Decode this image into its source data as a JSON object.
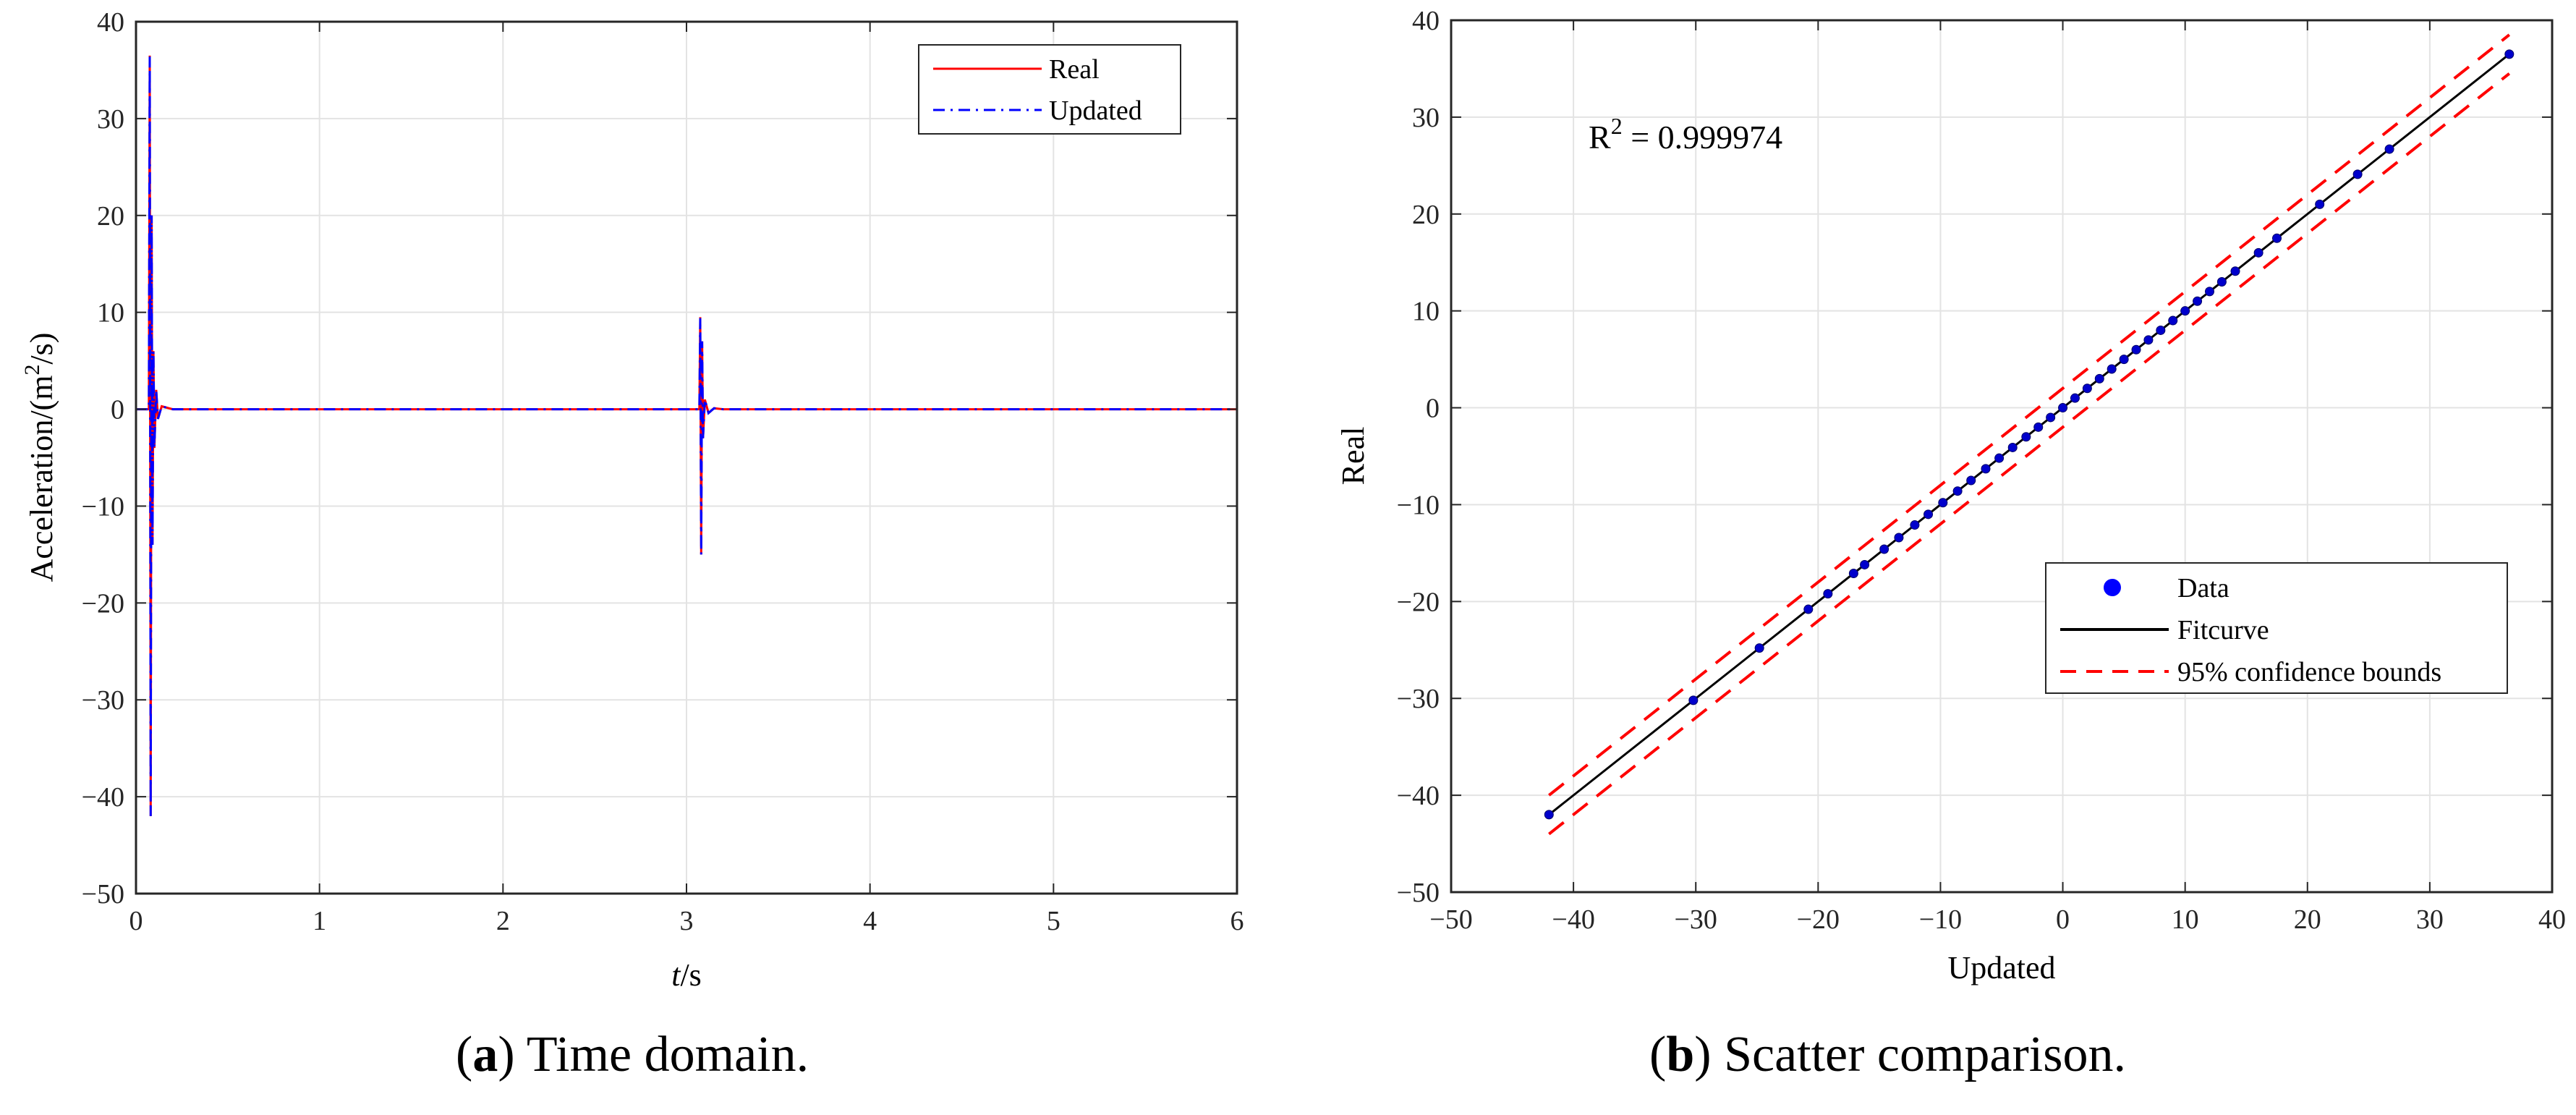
{
  "chart_data": [
    {
      "type": "line",
      "caption_letter": "a",
      "caption_text": "Time domain.",
      "title": "",
      "xlabel_italic": "t",
      "xlabel_rest": "/s",
      "ylabel_main": "Acceleration/(m",
      "ylabel_sup": "2",
      "ylabel_end": "/s)",
      "xlim": [
        0,
        6
      ],
      "ylim": [
        -50,
        40
      ],
      "xticks": [
        "0",
        "1",
        "2",
        "3",
        "4",
        "5",
        "6"
      ],
      "yticks": [
        "40",
        "30",
        "20",
        "10",
        "0",
        "−10",
        "−20",
        "−30",
        "−40",
        "−50"
      ],
      "grid": true,
      "legend_position": "top-right",
      "series": [
        {
          "name": "Real",
          "color": "#ff0000",
          "style": "solid",
          "x": [
            0,
            0.07,
            0.075,
            0.08,
            0.085,
            0.09,
            0.095,
            0.1,
            0.11,
            0.12,
            0.14,
            0.2,
            3.0,
            3.07,
            3.075,
            3.08,
            3.085,
            3.09,
            3.1,
            3.12,
            3.15,
            3.2,
            6.0
          ],
          "y": [
            0,
            0,
            36.5,
            -42,
            20,
            -14,
            6,
            -4,
            2,
            -1,
            0.3,
            0,
            0,
            0,
            9.5,
            -15,
            7,
            -3,
            1,
            -0.4,
            0.1,
            0,
            0
          ]
        },
        {
          "name": "Updated",
          "color": "#0000ff",
          "style": "dashdot",
          "x": [
            0,
            0.07,
            0.075,
            0.08,
            0.085,
            0.09,
            0.095,
            0.1,
            0.11,
            0.12,
            0.14,
            0.2,
            3.0,
            3.07,
            3.075,
            3.08,
            3.085,
            3.09,
            3.1,
            3.12,
            3.15,
            3.2,
            6.0
          ],
          "y": [
            0,
            0,
            36.4,
            -42,
            20,
            -14,
            6,
            -4,
            2,
            -1,
            0.3,
            0,
            0,
            0,
            9.4,
            -15,
            7,
            -3,
            1,
            -0.4,
            0.1,
            0,
            0
          ]
        }
      ]
    },
    {
      "type": "scatter",
      "caption_letter": "b",
      "caption_text": "Scatter comparison.",
      "title": "",
      "xlabel": "Updated",
      "ylabel": "Real",
      "xlim": [
        -50,
        40
      ],
      "ylim": [
        -50,
        40
      ],
      "xticks": [
        "−50",
        "−40",
        "−30",
        "−20",
        "−10",
        "0",
        "10",
        "20",
        "30",
        "40"
      ],
      "yticks": [
        "40",
        "30",
        "20",
        "10",
        "0",
        "−10",
        "−20",
        "−30",
        "−40",
        "−50"
      ],
      "grid": true,
      "legend_position": "bottom-right",
      "annotation_main": "R",
      "annotation_sup": "2",
      "annotation_value": " = 0.999974",
      "data": {
        "name": "Data",
        "color": "#0000ff",
        "x": [
          -42,
          -30.2,
          -24.8,
          -20.8,
          -19.2,
          -17.1,
          -16.2,
          -14.6,
          -13.4,
          -12.1,
          -11.0,
          -9.8,
          -8.6,
          -7.5,
          -6.3,
          -5.2,
          -4.1,
          -3.0,
          -2.0,
          -1.0,
          0.0,
          1.0,
          2.0,
          3.0,
          4.0,
          5.0,
          6.0,
          7.0,
          8.0,
          9.0,
          10.0,
          11.0,
          12.0,
          13.0,
          14.1,
          16.0,
          17.5,
          21.0,
          24.1,
          26.7,
          36.5
        ],
        "y": [
          -42,
          -30.2,
          -24.8,
          -20.8,
          -19.2,
          -17.1,
          -16.2,
          -14.6,
          -13.4,
          -12.1,
          -11.0,
          -9.8,
          -8.6,
          -7.5,
          -6.3,
          -5.2,
          -4.1,
          -3.0,
          -2.0,
          -1.0,
          0.0,
          1.0,
          2.0,
          3.0,
          4.0,
          5.0,
          6.0,
          7.0,
          8.0,
          9.0,
          10.0,
          11.0,
          12.0,
          13.0,
          14.1,
          16.0,
          17.5,
          21.0,
          24.1,
          26.7,
          36.5
        ]
      },
      "fit": {
        "name": "Fitcurve",
        "color": "#000000",
        "x": [
          -42,
          36.5
        ],
        "y": [
          -42,
          36.5
        ]
      },
      "bounds": {
        "name": "95% confidence bounds",
        "color": "#ff0000",
        "offset": 2
      }
    }
  ]
}
